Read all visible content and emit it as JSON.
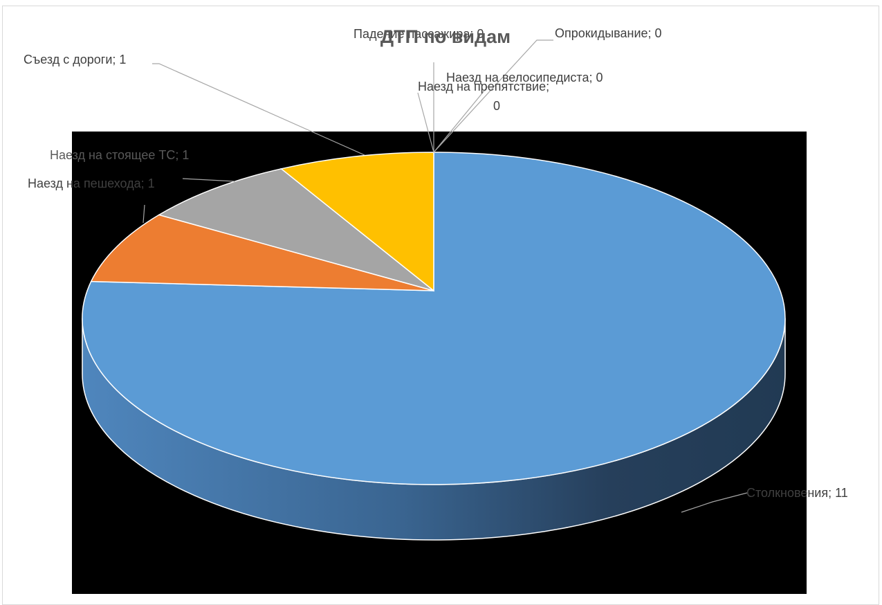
{
  "chart_data": {
    "type": "pie",
    "title": "ДТП по видам",
    "slices": [
      {
        "label": "Столкновения",
        "value": 11,
        "color": "#5b9bd5"
      },
      {
        "label": "Наезд на пешехода",
        "value": 1,
        "color": "#ed7d31"
      },
      {
        "label": "Наезд на стоящее ТС",
        "value": 1,
        "color": "#a5a5a5"
      },
      {
        "label": "Съезд с дороги",
        "value": 1,
        "color": "#ffc000"
      },
      {
        "label": "Наезд на препятствие",
        "value": 0,
        "color": "#4472c4"
      },
      {
        "label": "Падение пассажира",
        "value": 0,
        "color": "#70ad47"
      },
      {
        "label": "Наезд на велосипедиста",
        "value": 0,
        "color": "#264478"
      },
      {
        "label": "Опрокидывание",
        "value": 0,
        "color": "#9e480e"
      }
    ],
    "data_labels": [
      "Столкновения; 11",
      "Наезд на пешехода; 1",
      "Наезд на стоящее ТС; 1",
      "Съезд с дороги; 1",
      "Наезд на препятствие;",
      "0",
      "Падение пассажира; 0",
      "Наезд на велосипедиста; 0",
      "Опрокидывание; 0"
    ],
    "style": "3d-pie",
    "legend": "none"
  }
}
